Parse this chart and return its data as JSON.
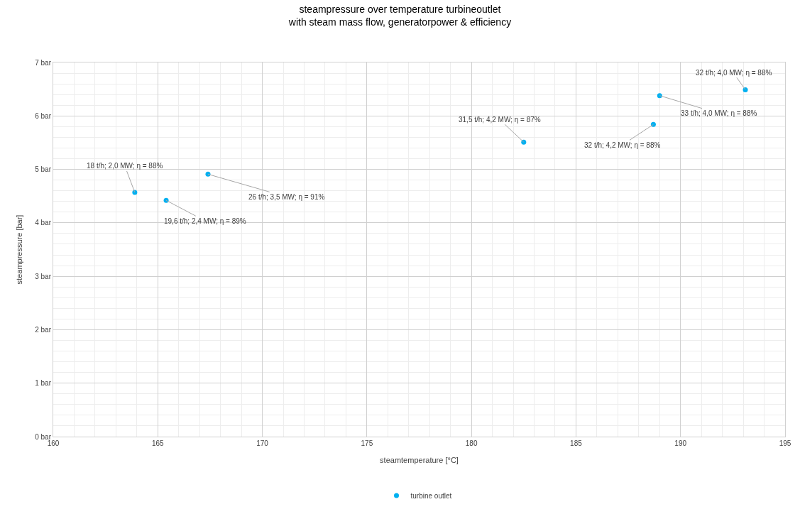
{
  "chart_data": {
    "type": "scatter",
    "title": "steampressure over temperature turbineoutlet",
    "subtitle": "with steam mass flow, generatorpower & efficiency",
    "xlabel": "steamtemperature [°C]",
    "ylabel": "steampressure [bar]",
    "series": [
      {
        "name": "turbine outlet",
        "color": "#00b0f0",
        "x": [
          163.9,
          165.4,
          167.4,
          182.5,
          188.7,
          189.0,
          193.1
        ],
        "values": [
          4.57,
          4.42,
          4.91,
          5.51,
          5.84,
          6.38,
          6.49
        ]
      }
    ],
    "annotations": [
      {
        "text": "18 t/h; 2,0 MW; η = 88%",
        "x": 163.9,
        "y": 4.57
      },
      {
        "text": "19,6 t/h; 2,4 MW; η = 89%",
        "x": 165.4,
        "y": 4.42
      },
      {
        "text": "26 t/h; 3,5 MW; η = 91%",
        "x": 167.4,
        "y": 4.91
      },
      {
        "text": "31,5 t/h; 4,2 MW; η = 87%",
        "x": 182.5,
        "y": 5.51
      },
      {
        "text": "32 t/h; 4,2 MW; η = 88%",
        "x": 188.7,
        "y": 5.84
      },
      {
        "text": "33 t/h; 4,0 MW; η = 88%",
        "x": 189.0,
        "y": 6.38
      },
      {
        "text": "32 t/h; 4,0 MW; η = 88%",
        "x": 193.1,
        "y": 6.49
      }
    ],
    "xlim": [
      160,
      195
    ],
    "xticks": [
      160,
      165,
      170,
      175,
      180,
      185,
      190,
      195
    ],
    "ylim": [
      0,
      7
    ],
    "yticks": [
      {
        "value": 0,
        "label": "0 bar"
      },
      {
        "value": 1,
        "label": "1 bar"
      },
      {
        "value": 2,
        "label": "2 bar"
      },
      {
        "value": 3,
        "label": "3 bar"
      },
      {
        "value": 4,
        "label": "4 bar"
      },
      {
        "value": 5,
        "label": "5 bar"
      },
      {
        "value": 6,
        "label": "6 bar"
      },
      {
        "value": 7,
        "label": "7 bar"
      }
    ],
    "grid": true,
    "legend": "bottom",
    "marker": "circle"
  }
}
